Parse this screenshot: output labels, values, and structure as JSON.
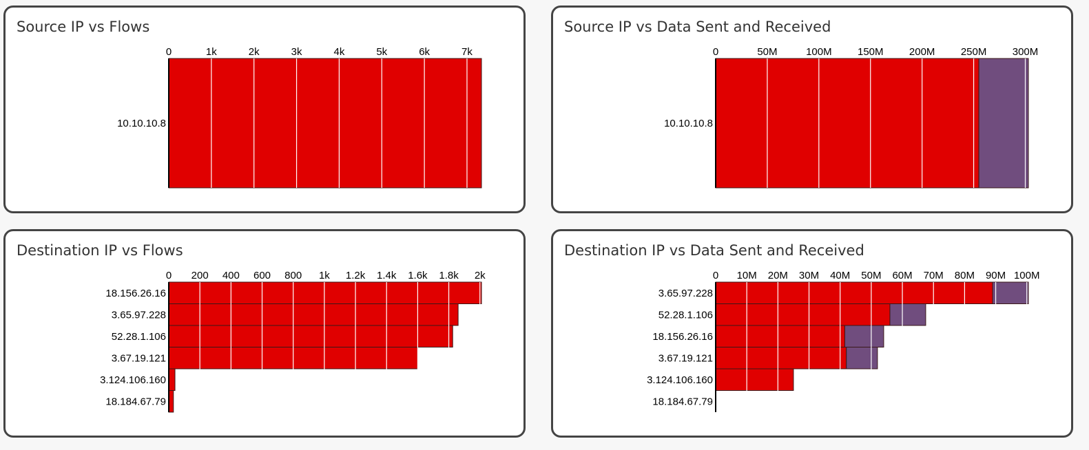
{
  "colors": {
    "sent": "#e00000",
    "received": "#704d7e",
    "gridline": "#ffffff",
    "axis": "#000000"
  },
  "chart_data": [
    {
      "id": "src-flows",
      "type": "bar",
      "orientation": "horizontal",
      "title": "Source IP vs Flows",
      "categories": [
        "10.10.10.8"
      ],
      "series": [
        {
          "color_key": "sent",
          "values": [
            7340
          ]
        }
      ],
      "xlim": [
        0,
        7340
      ],
      "ticks": [
        0,
        1000,
        2000,
        3000,
        4000,
        5000,
        6000,
        7000
      ],
      "tick_labels": [
        "0",
        "1k",
        "2k",
        "3k",
        "4k",
        "5k",
        "6k",
        "7k"
      ],
      "grid": true
    },
    {
      "id": "src-data",
      "type": "bar",
      "orientation": "horizontal",
      "stacked": true,
      "title": "Source IP vs Data Sent and Received",
      "categories": [
        "10.10.10.8"
      ],
      "series": [
        {
          "color_key": "sent",
          "values": [
            255000000
          ]
        },
        {
          "color_key": "received",
          "values": [
            48000000
          ]
        }
      ],
      "xlim": [
        0,
        303000000
      ],
      "ticks": [
        0,
        50000000,
        100000000,
        150000000,
        200000000,
        250000000,
        300000000
      ],
      "tick_labels": [
        "0",
        "50M",
        "100M",
        "150M",
        "200M",
        "250M",
        "300M"
      ],
      "grid": true
    },
    {
      "id": "dst-flows",
      "type": "bar",
      "orientation": "horizontal",
      "title": "Destination IP vs Flows",
      "categories": [
        "18.156.26.16",
        "3.65.97.228",
        "52.28.1.106",
        "3.67.19.121",
        "3.124.106.160",
        "18.184.67.79"
      ],
      "series": [
        {
          "color_key": "sent",
          "values": [
            2010,
            1860,
            1825,
            1600,
            40,
            30
          ]
        }
      ],
      "xlim": [
        0,
        2010
      ],
      "ticks": [
        0,
        200,
        400,
        600,
        800,
        1000,
        1200,
        1400,
        1600,
        1800,
        2000
      ],
      "tick_labels": [
        "0",
        "200",
        "400",
        "600",
        "800",
        "1k",
        "1.2k",
        "1.4k",
        "1.6k",
        "1.8k",
        "2k"
      ],
      "grid": true
    },
    {
      "id": "dst-data",
      "type": "bar",
      "orientation": "horizontal",
      "stacked": true,
      "title": "Destination IP vs Data Sent and Received",
      "categories": [
        "3.65.97.228",
        "52.28.1.106",
        "18.156.26.16",
        "3.67.19.121",
        "3.124.106.160",
        "18.184.67.79"
      ],
      "series": [
        {
          "color_key": "sent",
          "values": [
            89000000,
            56000000,
            41500000,
            42000000,
            25000000,
            0
          ]
        },
        {
          "color_key": "received",
          "values": [
            11500000,
            11500000,
            12500000,
            10000000,
            0,
            0
          ]
        }
      ],
      "xlim": [
        0,
        100500000
      ],
      "ticks": [
        0,
        10000000,
        20000000,
        30000000,
        40000000,
        50000000,
        60000000,
        70000000,
        80000000,
        90000000,
        100000000
      ],
      "tick_labels": [
        "0",
        "10M",
        "20M",
        "30M",
        "40M",
        "50M",
        "60M",
        "70M",
        "80M",
        "90M",
        "100M"
      ],
      "grid": true
    }
  ]
}
